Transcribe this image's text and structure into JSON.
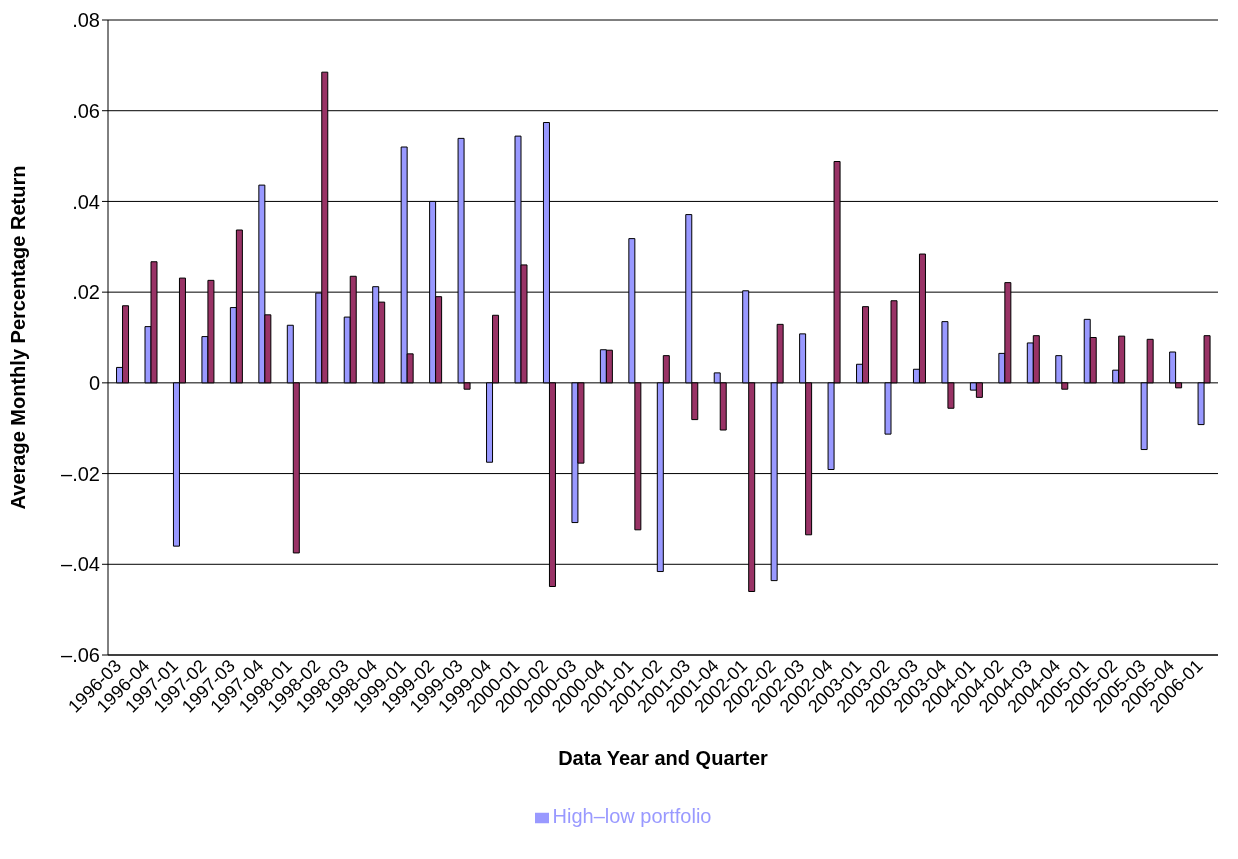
{
  "chart_data": {
    "type": "bar",
    "xlabel": "Data Year and Quarter",
    "ylabel": "Average Monthly Percentage Return",
    "categories": [
      "1996-03",
      "1996-04",
      "1997-01",
      "1997-02",
      "1997-03",
      "1997-04",
      "1998-01",
      "1998-02",
      "1998-03",
      "1998-04",
      "1999-01",
      "1999-02",
      "1999-03",
      "1999-04",
      "2000-01",
      "2000-02",
      "2000-03",
      "2000-04",
      "2001-01",
      "2001-02",
      "2001-03",
      "2001-04",
      "2002-01",
      "2002-02",
      "2002-03",
      "2002-04",
      "2003-01",
      "2003-02",
      "2003-03",
      "2003-04",
      "2004-01",
      "2004-02",
      "2004-03",
      "2004-04",
      "2005-01",
      "2005-02",
      "2005-03",
      "2005-04",
      "2006-01"
    ],
    "series": [
      {
        "name": "High–low portfolio",
        "color": "#9999ff",
        "values": [
          0.0034,
          0.0124,
          -0.036,
          0.0102,
          0.0166,
          0.0436,
          0.0127,
          0.0198,
          0.0145,
          0.0212,
          0.052,
          0.04,
          0.0539,
          -0.0175,
          0.0544,
          0.0574,
          -0.0308,
          0.0073,
          0.0318,
          -0.0416,
          0.0371,
          0.0022,
          0.0203,
          -0.0436,
          0.0108,
          -0.0191,
          0.0041,
          -0.0113,
          0.003,
          0.0135,
          -0.0016,
          0.0065,
          0.0088,
          0.006,
          0.014,
          0.0028,
          -0.0147,
          0.0068,
          -0.0092
        ]
      },
      {
        "color": "#993366",
        "values": [
          0.017,
          0.0267,
          0.0231,
          0.0226,
          0.0337,
          0.015,
          -0.0375,
          0.0685,
          0.0235,
          0.0178,
          0.0064,
          0.019,
          -0.0014,
          0.0149,
          0.026,
          -0.0449,
          -0.0177,
          0.0072,
          -0.0324,
          0.006,
          -0.0081,
          -0.0104,
          -0.046,
          0.0129,
          -0.0335,
          0.0488,
          0.0168,
          0.0181,
          0.0284,
          -0.0056,
          -0.0032,
          0.0221,
          0.0104,
          -0.0014,
          0.01,
          0.0103,
          0.0096,
          -0.0011,
          0.0104
        ]
      }
    ],
    "ylim": [
      -0.06,
      0.08
    ],
    "yticks": [
      {
        "value": -0.06,
        "label": "–.06"
      },
      {
        "value": -0.04,
        "label": "–.04"
      },
      {
        "value": -0.02,
        "label": "–.02"
      },
      0,
      {
        "value": 0.02,
        "label": ".02"
      },
      {
        "value": 0.04,
        "label": ".04"
      },
      {
        "value": 0.06,
        "label": ".06"
      },
      {
        "value": 0.08,
        "label": ".08"
      }
    ],
    "grid": "y",
    "legend": "bottom"
  }
}
